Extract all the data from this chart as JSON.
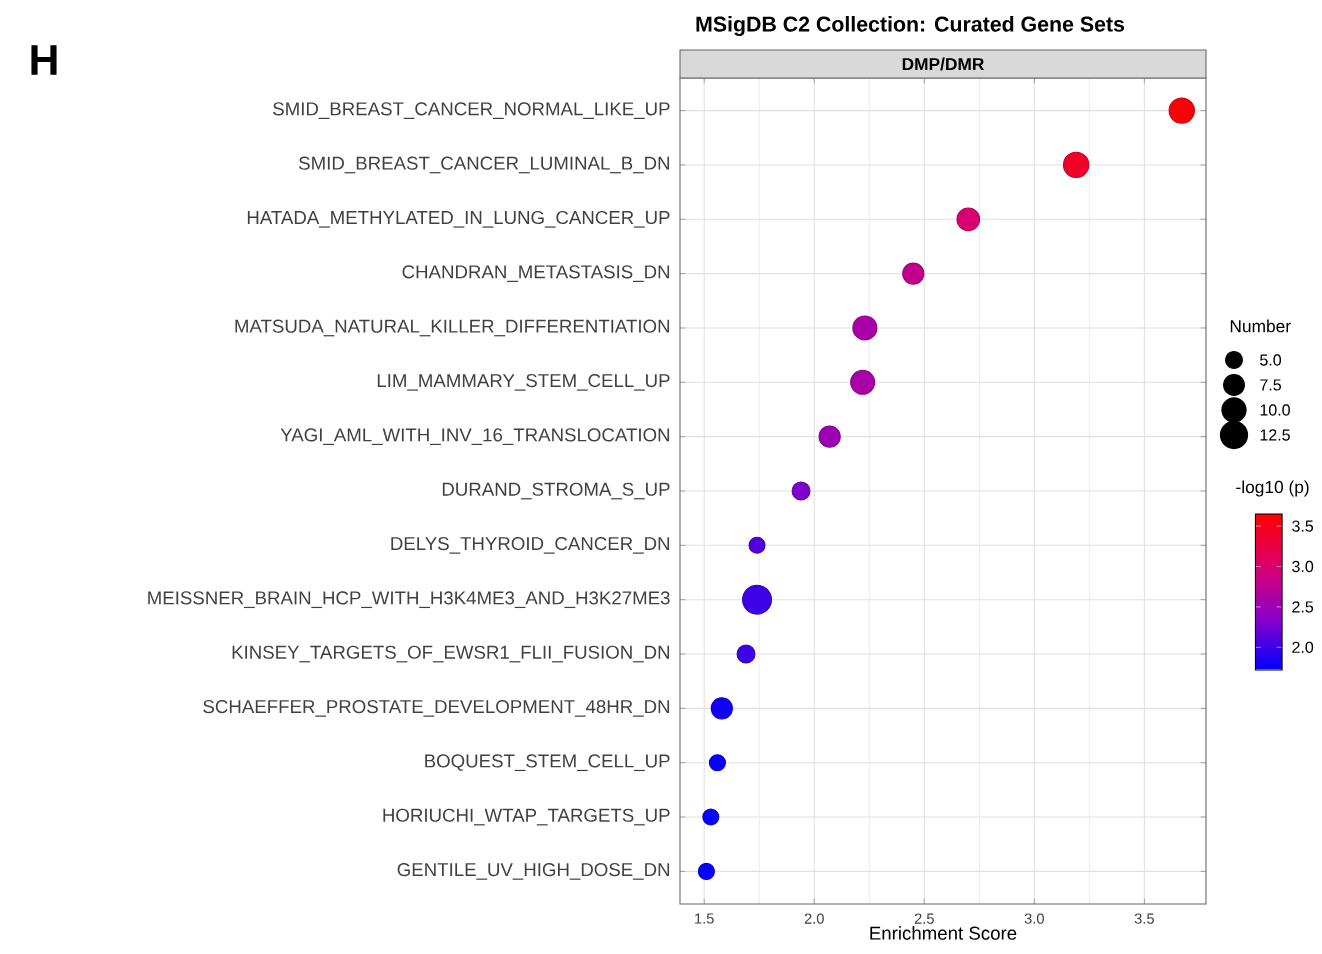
{
  "chart_data": {
    "type": "bubble",
    "orientation": "horizontal",
    "title": "MSigDB C2 Collection: Curated Gene Sets",
    "subtitle": "DMP/DMR",
    "xlabel": "Enrichment Score",
    "legend_title": "Number",
    "clabel": "-log10 (p)",
    "annotations": [
      "H"
    ],
    "categories": [
      "SMID_BREAST_CANCER_NORMAL_LIKE_UP",
      "SMID_BREAST_CANCER_LUMINAL_B_DN",
      "HATADA_METHYLATED_IN_LUNG_CANCER_UP",
      "CHANDRAN_METASTASIS_DN",
      "MATSUDA_NATURAL_KILLER_DIFFERENTIATION",
      "LIM_MAMMARY_STEM_CELL_UP",
      "YAGI_AML_WITH_INV_16_TRANSLOCATION",
      "DURAND_STROMA_S_UP",
      "DELYS_THYROID_CANCER_DN",
      "MEISSNER_BRAIN_HCP_WITH_H3K4ME3_AND_H3K27ME3",
      "KINSEY_TARGETS_OF_EWSR1_FLII_FUSION_DN",
      "SCHAEFFER_PROSTATE_DEVELOPMENT_48HR_DN",
      "BOQUEST_STEM_CELL_UP",
      "HORIUCHI_WTAP_TARGETS_UP",
      "GENTILE_UV_HIGH_DOSE_DN"
    ],
    "values": [
      3.67,
      3.19,
      2.7,
      2.45,
      2.23,
      2.22,
      2.07,
      1.94,
      1.74,
      1.74,
      1.69,
      1.58,
      1.56,
      1.53,
      1.51
    ],
    "sizes": [
      10,
      10,
      8,
      7,
      9,
      9,
      7,
      5,
      4,
      13,
      5,
      7,
      4,
      4,
      4
    ],
    "cvalues": [
      3.6,
      3.4,
      3.0,
      2.8,
      2.6,
      2.6,
      2.5,
      2.3,
      2.1,
      2.0,
      2.0,
      1.8,
      1.75,
      1.75,
      1.75
    ],
    "size_legend": [
      {
        "value": 5,
        "label": "5.0"
      },
      {
        "value": 7.5,
        "label": "7.5"
      },
      {
        "value": 10,
        "label": "10.0"
      },
      {
        "value": 12.5,
        "label": "12.5"
      }
    ],
    "clim": [
      1.72,
      3.65
    ],
    "cticks": [
      {
        "value": 2,
        "label": "2.0"
      },
      {
        "value": 2.5,
        "label": "2.5"
      },
      {
        "value": 3,
        "label": "3.0"
      },
      {
        "value": 3.5,
        "label": "3.5"
      }
    ],
    "xlim": [
      1.39,
      3.78
    ],
    "xticks": [
      {
        "value": 1.5,
        "label": "1.5"
      },
      {
        "value": 2,
        "label": "2.0"
      },
      {
        "value": 2.5,
        "label": "2.5"
      },
      {
        "value": 3,
        "label": "3.0"
      },
      {
        "value": 3.5,
        "label": "3.5"
      }
    ],
    "grid": true
  }
}
